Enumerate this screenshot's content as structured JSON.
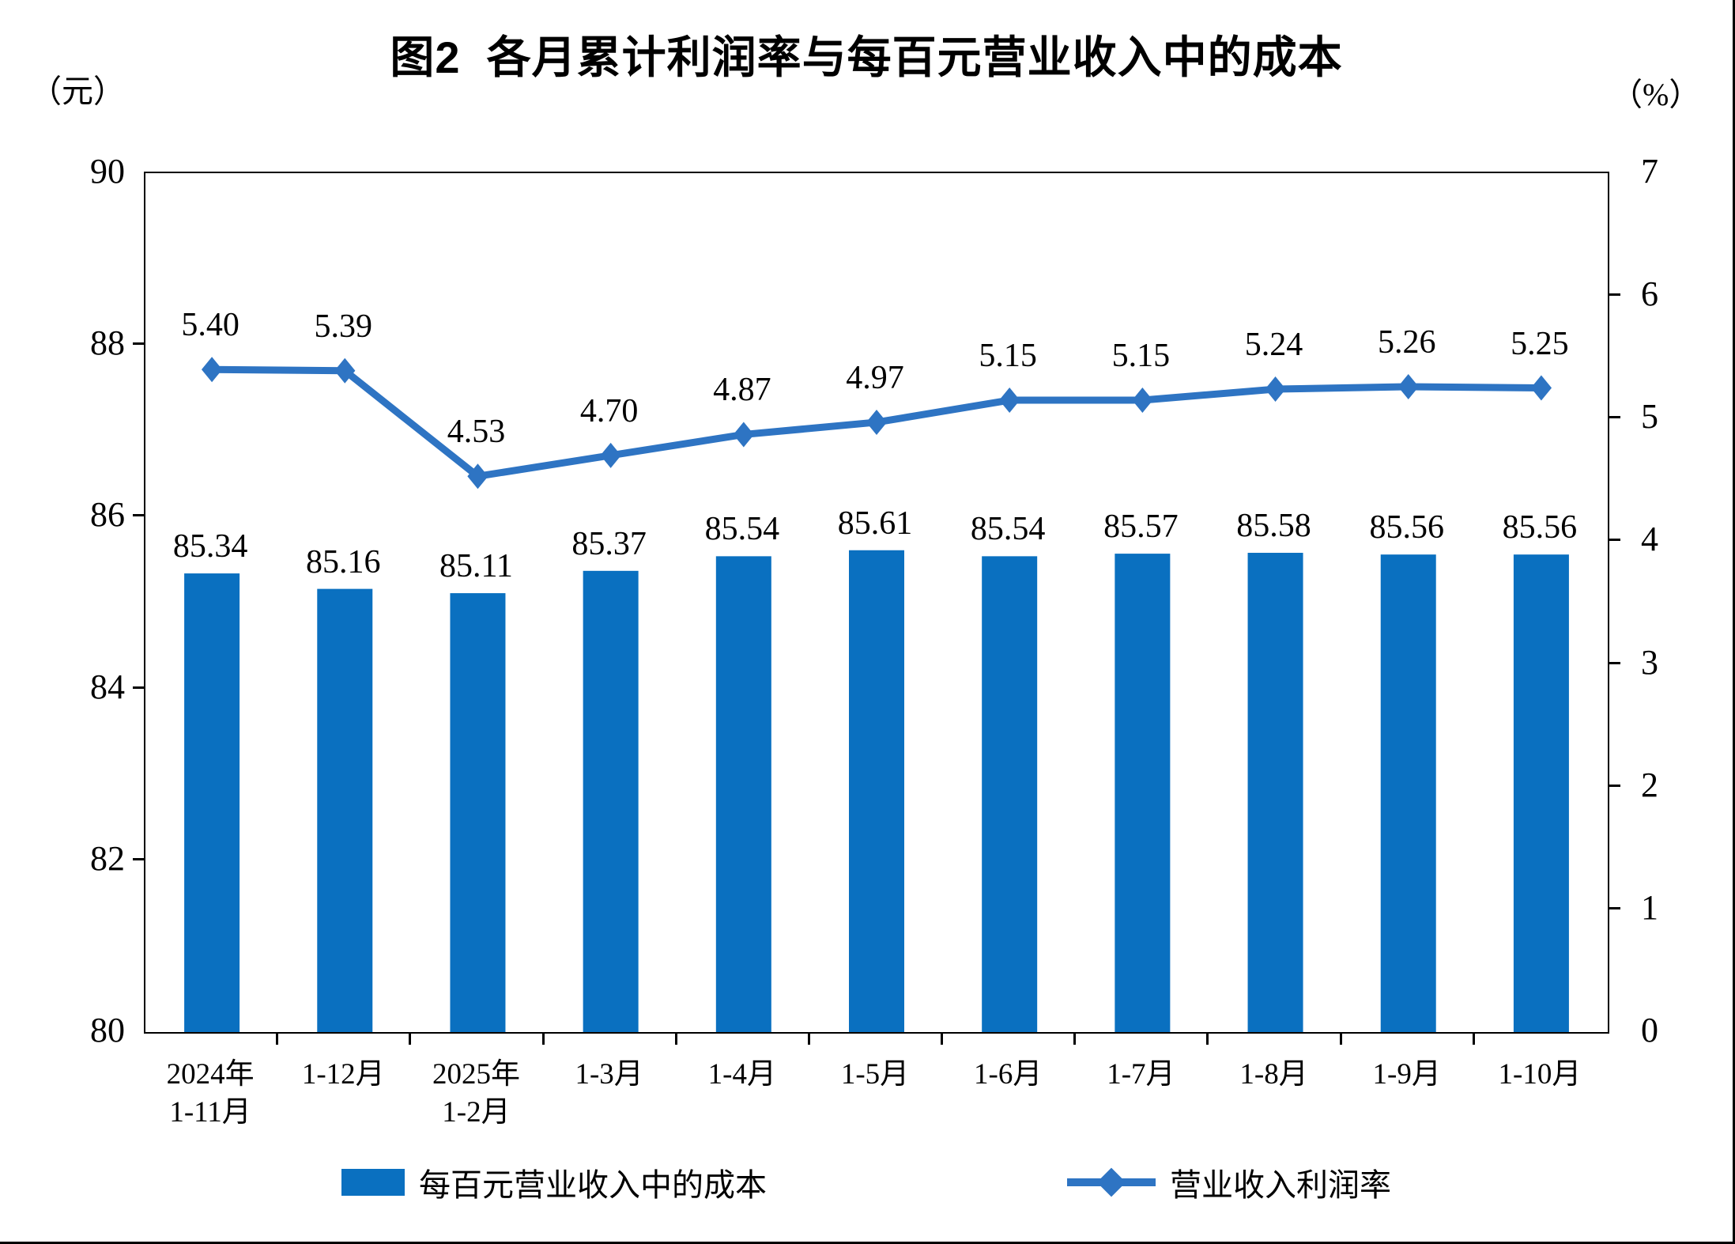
{
  "title": "图2  各月累计利润率与每百元营业收入中的成本",
  "left_axis": {
    "unit": "（元）",
    "ticks": [
      90,
      88,
      86,
      84,
      82,
      80
    ]
  },
  "right_axis": {
    "unit": "（%）",
    "ticks": [
      7,
      6,
      5,
      4,
      3,
      2,
      1,
      0
    ]
  },
  "colors": {
    "bar": "#0A70C0",
    "line": "#2E74C3",
    "axis": "#000000",
    "background": "#FFFFFF"
  },
  "chart_data": {
    "type": "bar+line",
    "categories": [
      [
        "2024年",
        "1-11月"
      ],
      [
        "1-12月"
      ],
      [
        "2025年",
        "1-2月"
      ],
      [
        "1-3月"
      ],
      [
        "1-4月"
      ],
      [
        "1-5月"
      ],
      [
        "1-6月"
      ],
      [
        "1-7月"
      ],
      [
        "1-8月"
      ],
      [
        "1-9月"
      ],
      [
        "1-10月"
      ]
    ],
    "series": [
      {
        "name": "每百元营业收入中的成本",
        "type": "bar",
        "axis": "left",
        "values": [
          85.34,
          85.16,
          85.11,
          85.37,
          85.54,
          85.61,
          85.54,
          85.57,
          85.58,
          85.56,
          85.56
        ]
      },
      {
        "name": "营业收入利润率",
        "type": "line",
        "axis": "right",
        "values": [
          5.4,
          5.39,
          4.53,
          4.7,
          4.87,
          4.97,
          5.15,
          5.15,
          5.24,
          5.26,
          5.25
        ]
      }
    ],
    "title": "图2  各月累计利润率与每百元营业收入中的成本",
    "xlabel": "",
    "ylabel_left": "（元）",
    "ylabel_right": "（%）",
    "ylim_left": [
      80,
      90
    ],
    "ylim_right": [
      0,
      7
    ],
    "grid": false,
    "legend_position": "bottom"
  },
  "legend": {
    "bar_label": "每百元营业收入中的成本",
    "line_label": "营业收入利润率"
  }
}
